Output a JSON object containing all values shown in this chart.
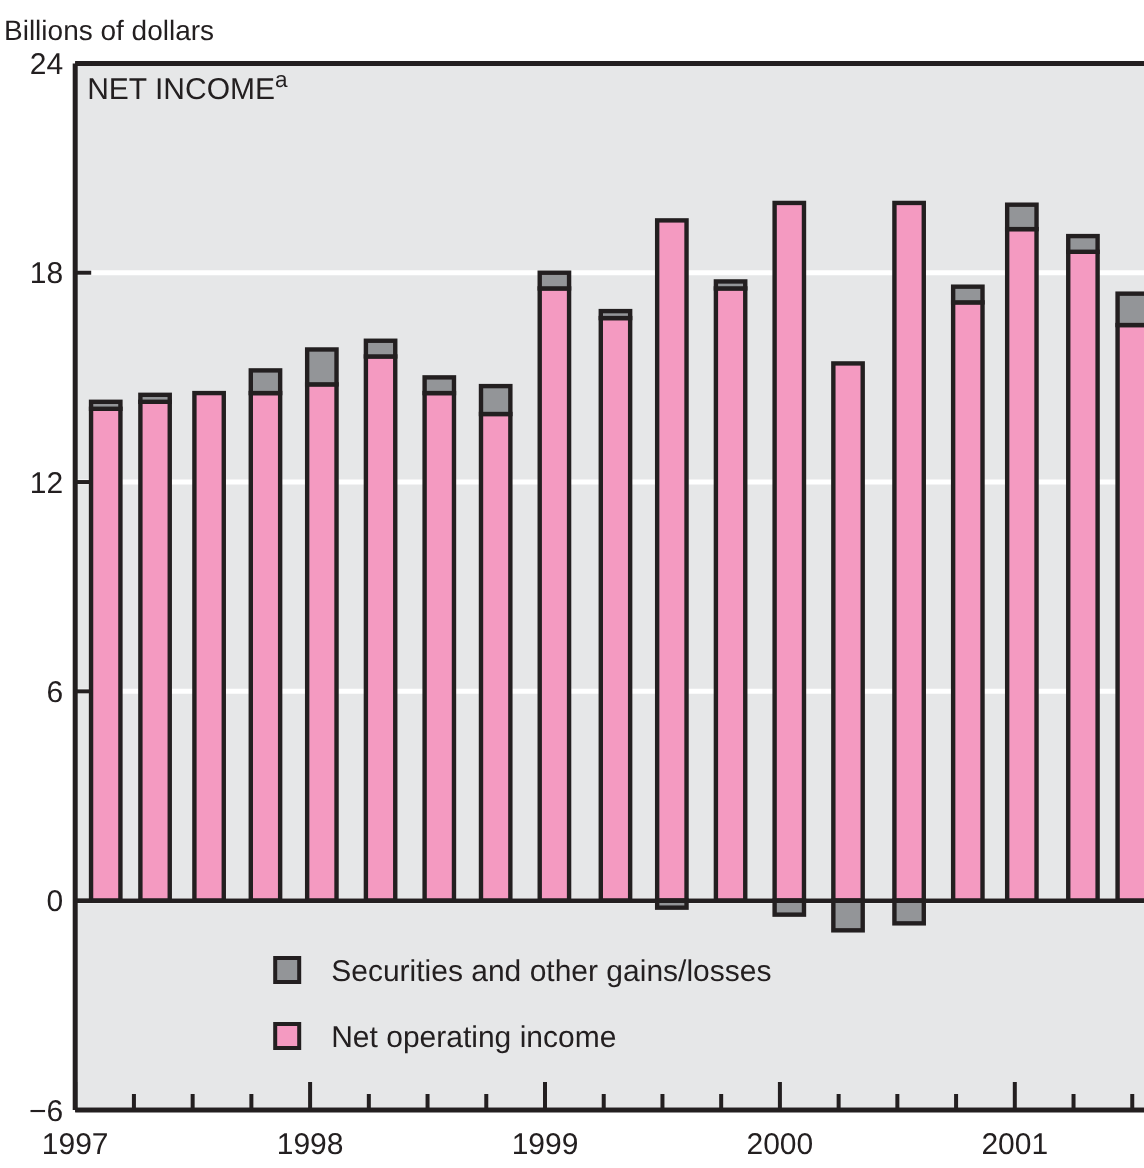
{
  "chart_data": {
    "type": "bar",
    "title": "NET INCOME$^{a}$",
    "ylabel": "Billions of dollars",
    "stacked": true,
    "x": [
      1997.13,
      1997.34,
      1997.57,
      1997.81,
      1998.05,
      1998.3,
      1998.55,
      1998.79,
      1999.04,
      1999.3,
      1999.54,
      1999.79,
      2000.04,
      2000.29,
      2000.55,
      2000.8,
      2001.03,
      2001.29,
      2001.5
    ],
    "series": [
      {
        "name": "Net operating income",
        "color": "#f49ac1",
        "values": [
          14.1,
          14.3,
          14.55,
          14.55,
          14.8,
          15.6,
          14.55,
          13.95,
          17.55,
          16.7,
          19.5,
          17.55,
          20.0,
          15.4,
          20.0,
          17.15,
          19.25,
          18.6,
          16.5
        ]
      },
      {
        "name": "Securities and other gains/losses",
        "color": "#939598",
        "values": [
          0.2,
          0.2,
          0,
          0.65,
          1.0,
          0.45,
          0.45,
          0.8,
          0.45,
          0.2,
          -0.2,
          0.2,
          -0.4,
          -0.85,
          -0.65,
          0.45,
          0.7,
          0.45,
          0.9
        ]
      }
    ],
    "xlim": [
      1997,
      2001.55
    ],
    "xticks": [
      {
        "value": 1997,
        "label": "1997"
      },
      {
        "value": 1997.25,
        "label": null
      },
      {
        "value": 1997.5,
        "label": null
      },
      {
        "value": 1997.75,
        "label": null
      },
      {
        "value": 1998,
        "label": "1998"
      },
      {
        "value": 1998.25,
        "label": null
      },
      {
        "value": 1998.5,
        "label": null
      },
      {
        "value": 1998.75,
        "label": null
      },
      {
        "value": 1999,
        "label": "1999"
      },
      {
        "value": 1999.25,
        "label": null
      },
      {
        "value": 1999.5,
        "label": null
      },
      {
        "value": 1999.75,
        "label": null
      },
      {
        "value": 2000,
        "label": "2000"
      },
      {
        "value": 2000.25,
        "label": null
      },
      {
        "value": 2000.5,
        "label": null
      },
      {
        "value": 2000.75,
        "label": null
      },
      {
        "value": 2001,
        "label": "2001"
      },
      {
        "value": 2001.25,
        "label": null
      },
      {
        "value": 2001.5,
        "label": null
      }
    ],
    "ylim": [
      -6,
      24
    ],
    "yticks": [
      {
        "value": -6,
        "label": "−6"
      },
      0,
      6,
      12,
      18,
      24
    ],
    "grid": "y",
    "ref_lines": [
      {
        "axis": "y",
        "value": 0,
        "color": "#231f20"
      }
    ],
    "legend": "bottom left"
  }
}
